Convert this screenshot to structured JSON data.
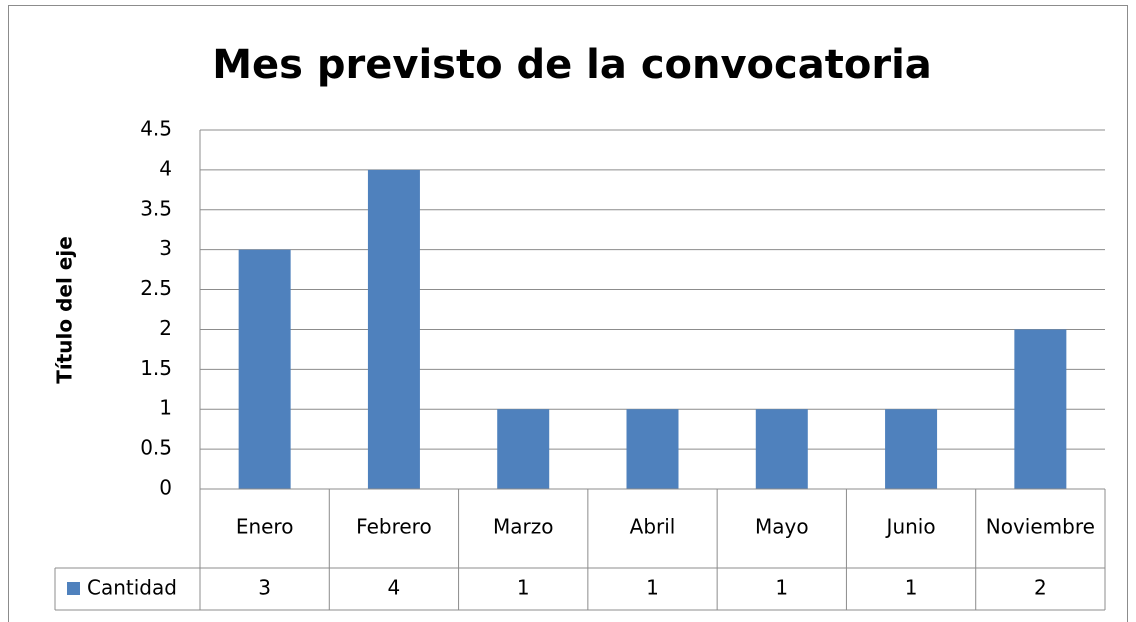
{
  "chart_data": {
    "type": "bar",
    "title": "Mes previsto de la convocatoria",
    "y_label": "Título del eje",
    "categories": [
      "Enero",
      "Febrero",
      "Marzo",
      "Abril",
      "Mayo",
      "Junio",
      "Noviembre"
    ],
    "series": [
      {
        "name": "Cantidad",
        "color": "#4f81bd",
        "values": [
          3,
          4,
          1,
          1,
          1,
          1,
          2
        ]
      }
    ],
    "ylim": [
      0,
      4.5
    ],
    "yticks": [
      0,
      0.5,
      1,
      1.5,
      2,
      2.5,
      3,
      3.5,
      4,
      4.5
    ],
    "grid": true,
    "data_table": true
  }
}
